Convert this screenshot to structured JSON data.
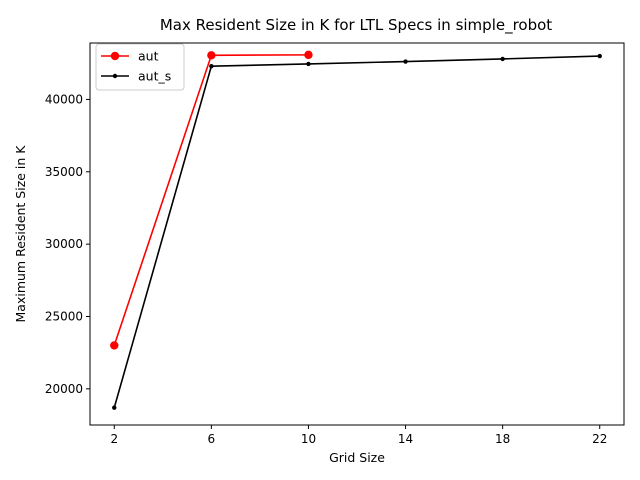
{
  "chart_data": {
    "type": "line",
    "title": "Max Resident Size in K for LTL Specs in simple_robot",
    "xlabel": "Grid Size",
    "ylabel": "Maximum Resident Size in K",
    "xticks": [
      2,
      6,
      10,
      14,
      18,
      22
    ],
    "yticks": [
      20000,
      25000,
      30000,
      35000,
      40000
    ],
    "xlim": [
      1.0,
      23.0
    ],
    "ylim": [
      17500,
      43900
    ],
    "grid": false,
    "legend_position": "upper-left",
    "series": [
      {
        "name": "aut",
        "color": "#ff0000",
        "marker": "large-circle",
        "x": [
          2,
          6,
          10
        ],
        "y": [
          23000,
          43050,
          43080
        ]
      },
      {
        "name": "aut_s",
        "color": "#000000",
        "marker": "small-circle",
        "x": [
          2,
          6,
          10,
          14,
          18,
          22
        ],
        "y": [
          18700,
          42300,
          42450,
          42620,
          42800,
          43000
        ]
      }
    ]
  }
}
